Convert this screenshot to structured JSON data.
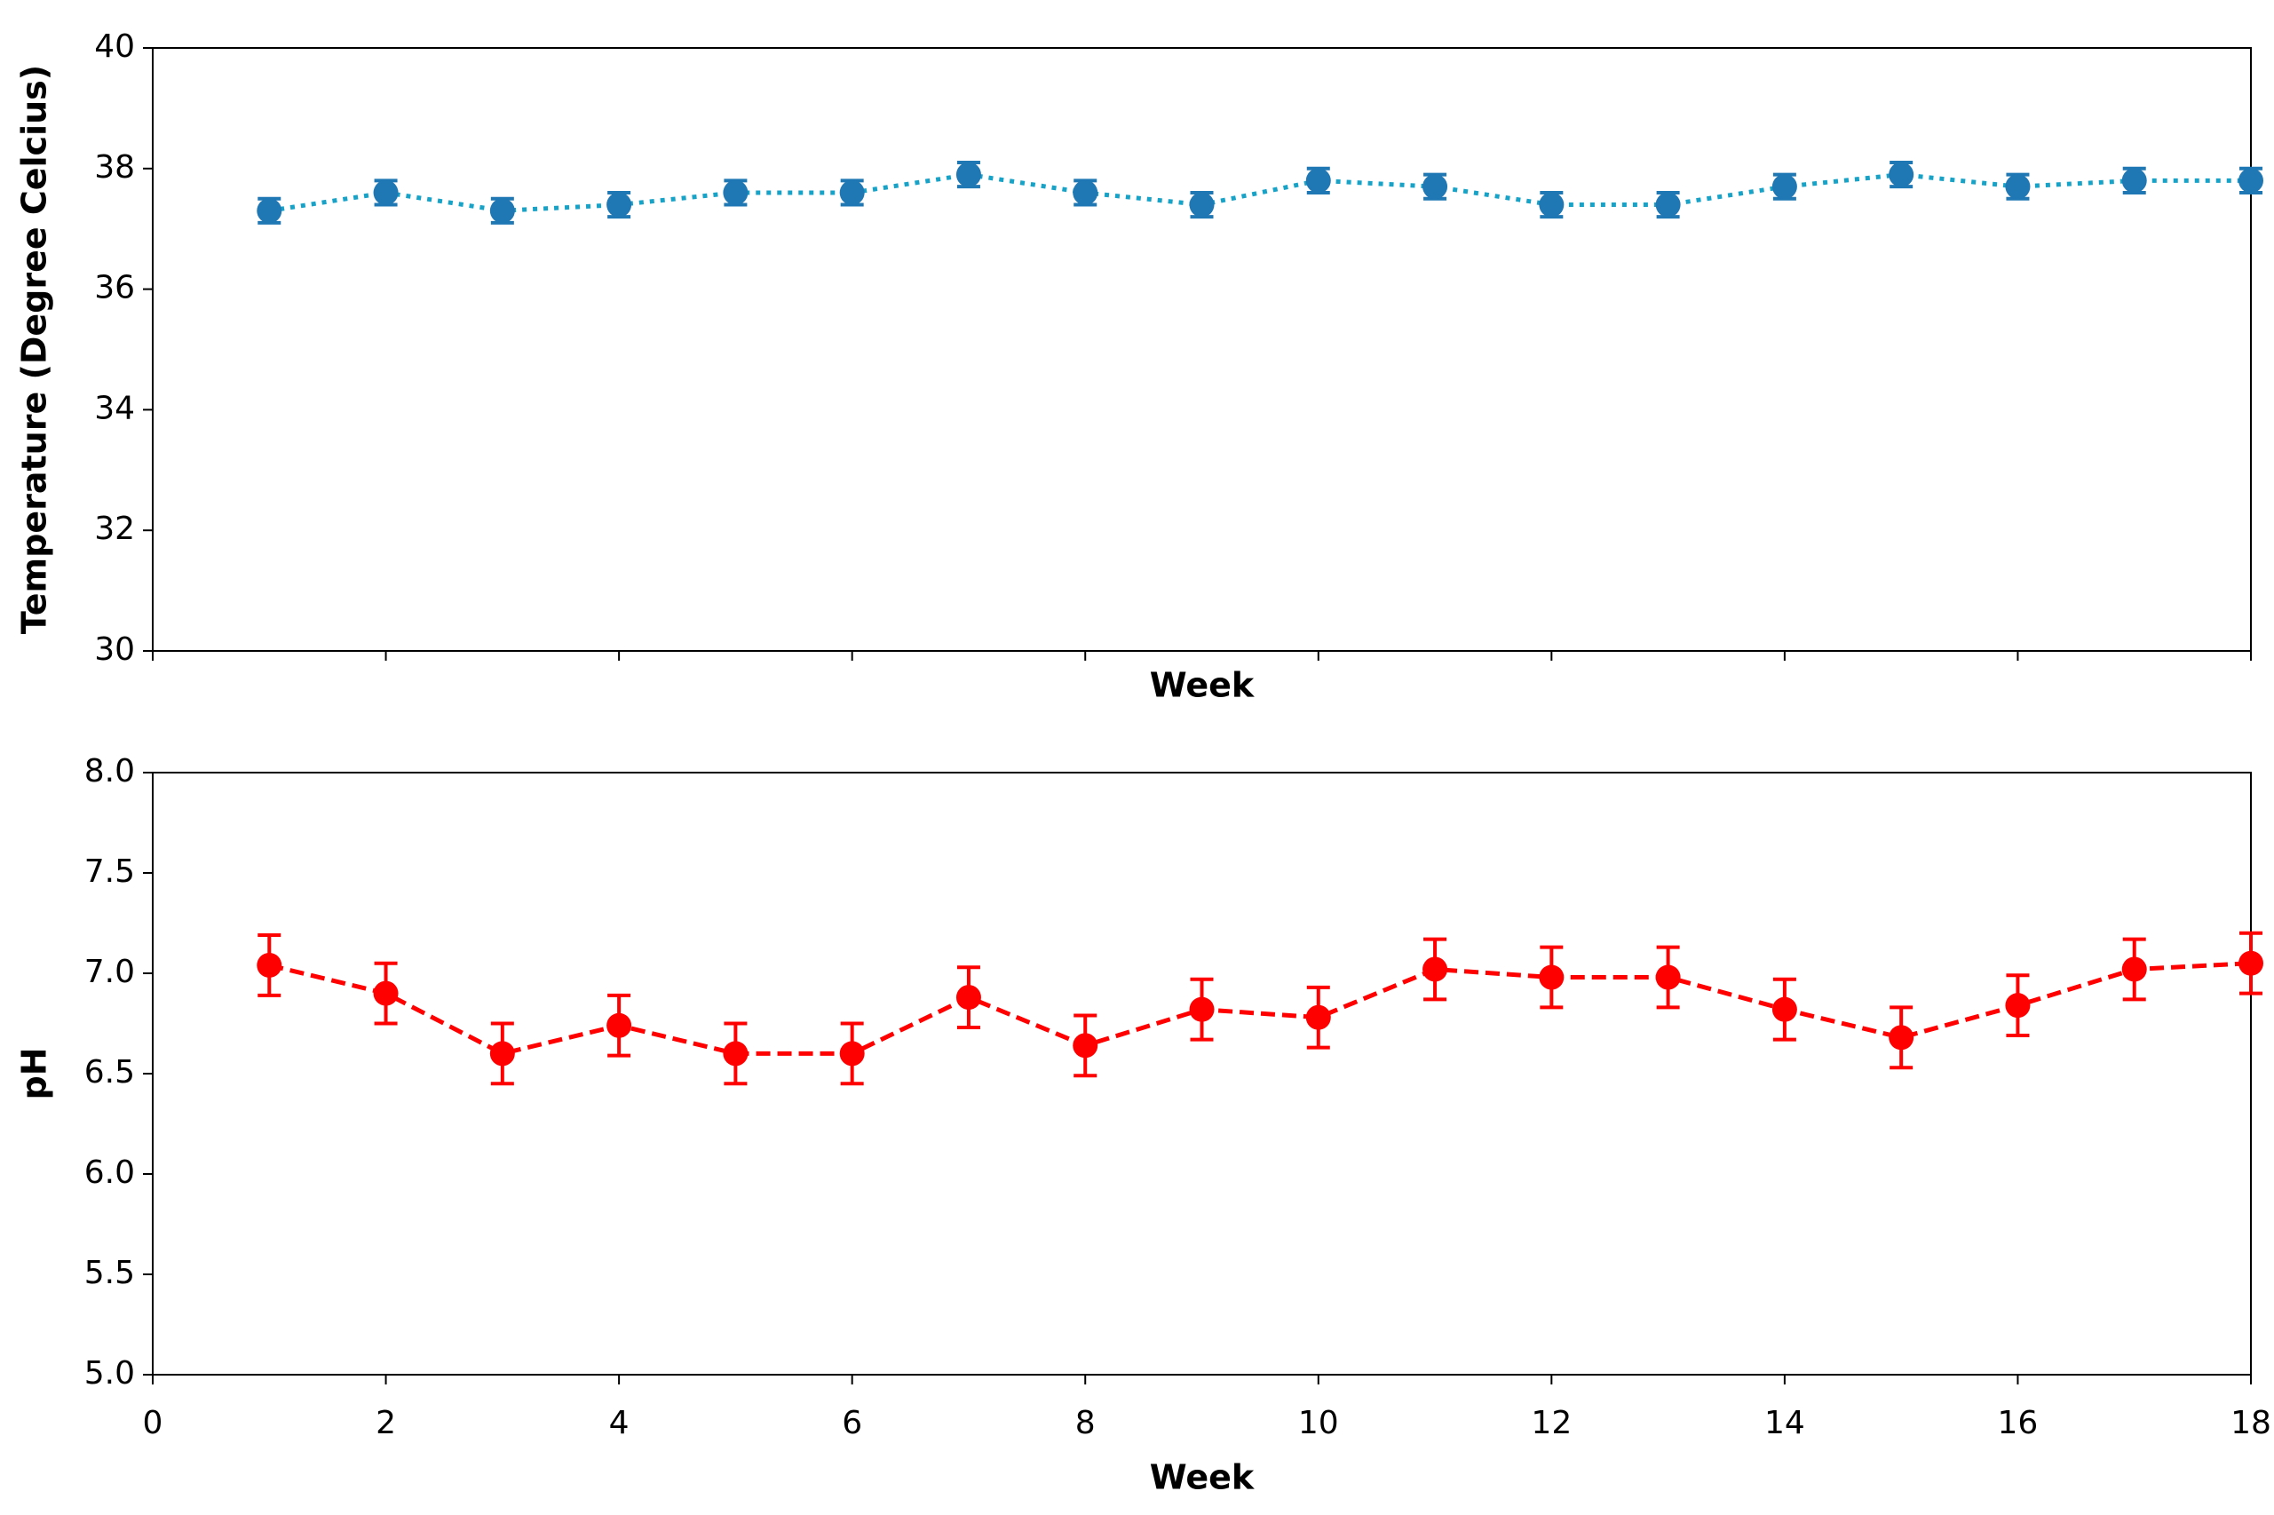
{
  "chart_data": [
    {
      "type": "errorbar",
      "ylabel": "Temperature (Degree Celcius)",
      "xlabel": "Week",
      "x": [
        1,
        2,
        3,
        4,
        5,
        6,
        7,
        8,
        9,
        10,
        11,
        12,
        13,
        14,
        15,
        16,
        17,
        18
      ],
      "values": [
        37.3,
        37.6,
        37.3,
        37.4,
        37.6,
        37.6,
        37.9,
        37.6,
        37.4,
        37.8,
        37.7,
        37.4,
        37.4,
        37.7,
        37.9,
        37.7,
        37.8,
        37.8
      ],
      "errors": [
        0.2,
        0.2,
        0.2,
        0.2,
        0.2,
        0.2,
        0.2,
        0.2,
        0.2,
        0.2,
        0.2,
        0.2,
        0.2,
        0.2,
        0.2,
        0.2,
        0.2,
        0.2
      ],
      "color": "#1f77b4",
      "line_color": "#17a2c8",
      "line_style": "dotted",
      "xlim": [
        0,
        18
      ],
      "ylim": [
        30,
        40
      ],
      "yticks": [
        30,
        32,
        34,
        36,
        38,
        40
      ]
    },
    {
      "type": "errorbar",
      "ylabel": "pH",
      "xlabel": "Week",
      "x": [
        1,
        2,
        3,
        4,
        5,
        6,
        7,
        8,
        9,
        10,
        11,
        12,
        13,
        14,
        15,
        16,
        17,
        18
      ],
      "values": [
        7.04,
        6.9,
        6.6,
        6.74,
        6.6,
        6.6,
        6.88,
        6.64,
        6.82,
        6.78,
        7.02,
        6.98,
        6.98,
        6.82,
        6.68,
        6.84,
        7.02,
        7.05
      ],
      "errors": [
        0.15,
        0.15,
        0.15,
        0.15,
        0.15,
        0.15,
        0.15,
        0.15,
        0.15,
        0.15,
        0.15,
        0.15,
        0.15,
        0.15,
        0.15,
        0.15,
        0.15,
        0.15
      ],
      "color": "#ff0000",
      "line_color": "#ff0000",
      "line_style": "dashed",
      "xlim": [
        0,
        18
      ],
      "xticks": [
        0,
        2,
        4,
        6,
        8,
        10,
        12,
        14,
        16,
        18
      ],
      "ylim": [
        5,
        8
      ],
      "yticks": [
        {
          "value": 5,
          "label": "5.0"
        },
        5.5,
        {
          "value": 6,
          "label": "6.0"
        },
        6.5,
        {
          "value": 7,
          "label": "7.0"
        },
        7.5,
        {
          "value": 8,
          "label": "8.0"
        }
      ]
    }
  ]
}
